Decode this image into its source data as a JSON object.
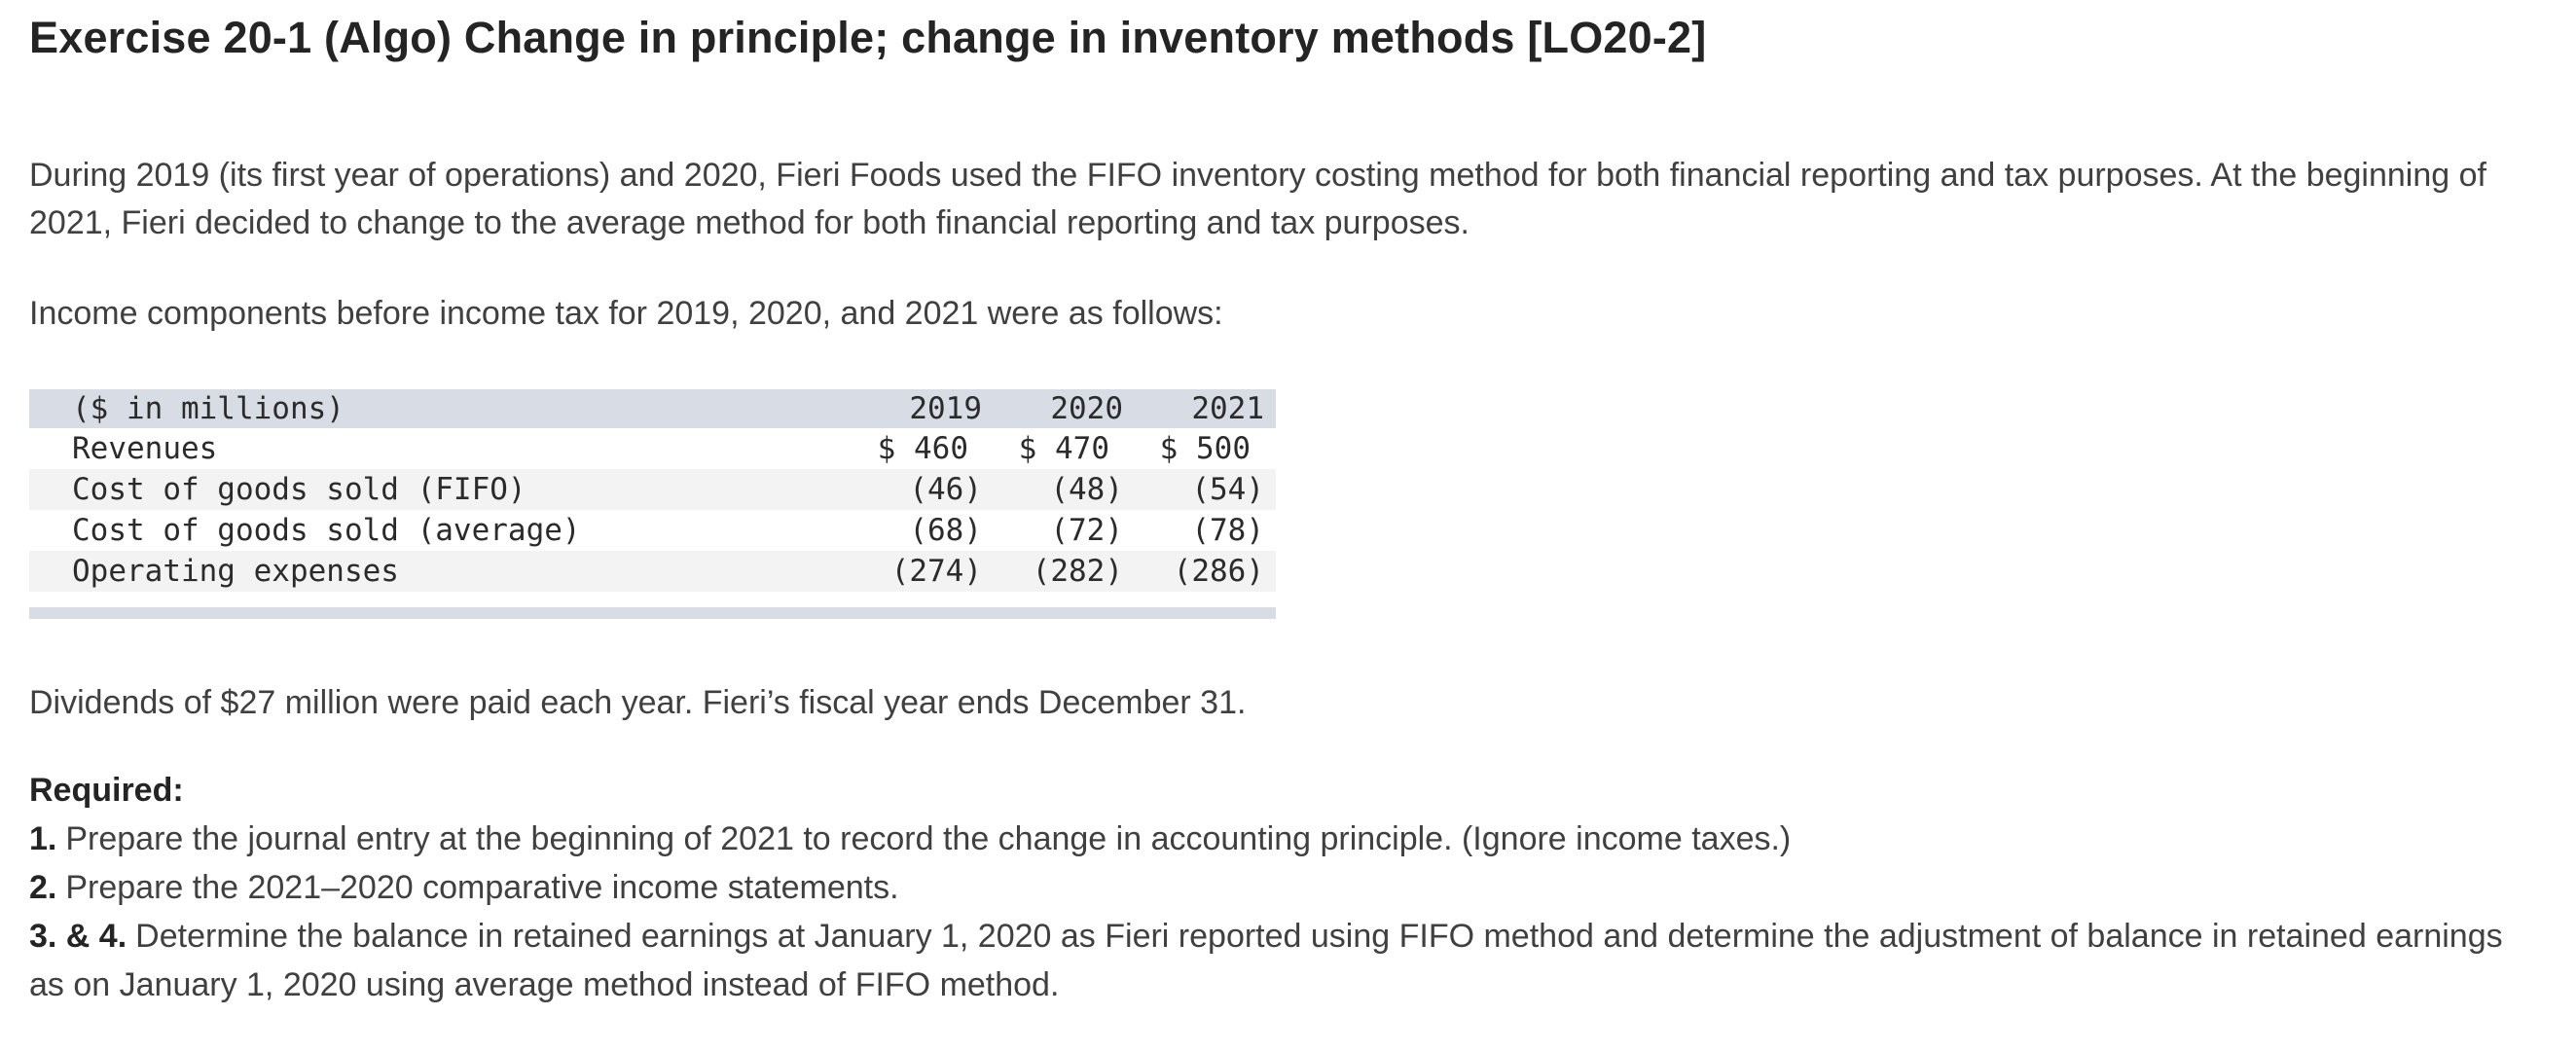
{
  "title": "Exercise 20-1 (Algo) Change in principle; change in inventory methods [LO20-2]",
  "paragraphs": {
    "intro": "During 2019 (its first year of operations) and 2020, Fieri Foods used the FIFO inventory costing method for both financial reporting and tax purposes. At the beginning of 2021, Fieri decided to change to the average method for both financial reporting and tax purposes.",
    "income_intro": "Income components before income tax for 2019, 2020, and 2021 were as follows:",
    "dividends": "Dividends of $27 million were paid each year. Fieri’s fiscal year ends December 31."
  },
  "table": {
    "header": {
      "label": "($ in millions)",
      "years": [
        "2019",
        "2020",
        "2021"
      ]
    },
    "rows": [
      {
        "label": "Revenues",
        "values": [
          "$ 460",
          "$ 470",
          "$ 500"
        ],
        "shaded": false
      },
      {
        "label": "Cost of goods sold (FIFO)",
        "values": [
          "(46)",
          "(48)",
          "(54)"
        ],
        "shaded": true
      },
      {
        "label": "Cost of goods sold (average)",
        "values": [
          "(68)",
          "(72)",
          "(78)"
        ],
        "shaded": false
      },
      {
        "label": "Operating expenses",
        "values": [
          "(274)",
          "(282)",
          "(286)"
        ],
        "shaded": true
      }
    ],
    "colors": {
      "header_bg": "#d8dce4",
      "stripe_bg": "#f3f3f3",
      "footer_bg": "#d8dce4"
    }
  },
  "required": {
    "heading": "Required:",
    "items": [
      {
        "prefix": "1.",
        "text": "Prepare the journal entry at the beginning of 2021 to record the change in accounting principle. (Ignore income taxes.)"
      },
      {
        "prefix": "2.",
        "text": "Prepare the 2021–2020 comparative income statements."
      },
      {
        "prefix": "3. & 4.",
        "text": "Determine the balance in retained earnings at January 1, 2020 as Fieri reported using FIFO method and determine the adjustment of balance in retained earnings as on January 1, 2020 using average method instead of FIFO method."
      }
    ]
  }
}
